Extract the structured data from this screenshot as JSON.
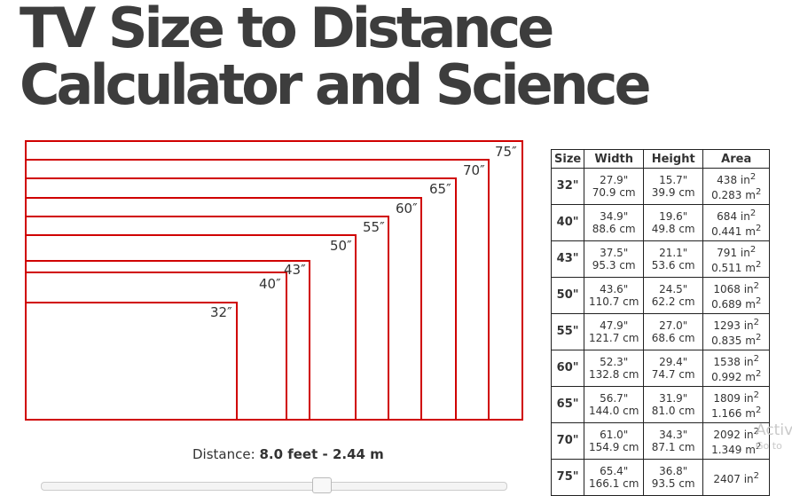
{
  "title": {
    "line1": "TV Size to Distance",
    "line2": "Calculator and Science"
  },
  "tv_labels": [
    "75″",
    "70″",
    "65″",
    "60″",
    "55″",
    "50″",
    "43″",
    "40″",
    "32″"
  ],
  "distance": {
    "label": "Distance:",
    "value": "8.0 feet - 2.44 m"
  },
  "table": {
    "headers": [
      "Size",
      "Width",
      "Height",
      "Area"
    ],
    "rows": [
      {
        "size": "32\"",
        "w_in": "27.9\"",
        "w_cm": "70.9 cm",
        "h_in": "15.7\"",
        "h_cm": "39.9 cm",
        "a_in": "438 in",
        "a_m": "0.283 m"
      },
      {
        "size": "40\"",
        "w_in": "34.9\"",
        "w_cm": "88.6 cm",
        "h_in": "19.6\"",
        "h_cm": "49.8 cm",
        "a_in": "684 in",
        "a_m": "0.441 m"
      },
      {
        "size": "43\"",
        "w_in": "37.5\"",
        "w_cm": "95.3 cm",
        "h_in": "21.1\"",
        "h_cm": "53.6 cm",
        "a_in": "791 in",
        "a_m": "0.511 m"
      },
      {
        "size": "50\"",
        "w_in": "43.6\"",
        "w_cm": "110.7 cm",
        "h_in": "24.5\"",
        "h_cm": "62.2 cm",
        "a_in": "1068 in",
        "a_m": "0.689 m"
      },
      {
        "size": "55\"",
        "w_in": "47.9\"",
        "w_cm": "121.7 cm",
        "h_in": "27.0\"",
        "h_cm": "68.6 cm",
        "a_in": "1293 in",
        "a_m": "0.835 m"
      },
      {
        "size": "60\"",
        "w_in": "52.3\"",
        "w_cm": "132.8 cm",
        "h_in": "29.4\"",
        "h_cm": "74.7 cm",
        "a_in": "1538 in",
        "a_m": "0.992 m"
      },
      {
        "size": "65\"",
        "w_in": "56.7\"",
        "w_cm": "144.0 cm",
        "h_in": "31.9\"",
        "h_cm": "81.0 cm",
        "a_in": "1809 in",
        "a_m": "1.166 m"
      },
      {
        "size": "70\"",
        "w_in": "61.0\"",
        "w_cm": "154.9 cm",
        "h_in": "34.3\"",
        "h_cm": "87.1 cm",
        "a_in": "2092 in",
        "a_m": "1.349 m"
      },
      {
        "size": "75\"",
        "w_in": "65.4\"",
        "w_cm": "166.1 cm",
        "h_in": "36.8\"",
        "h_cm": "93.5 cm",
        "a_in": "2407 in",
        "a_m": ""
      }
    ],
    "superscript": "2"
  },
  "watermark": {
    "line1": "Activ",
    "line2": "Go to"
  },
  "colors": {
    "outline": "#d00000",
    "title": "#3d3d3d"
  }
}
